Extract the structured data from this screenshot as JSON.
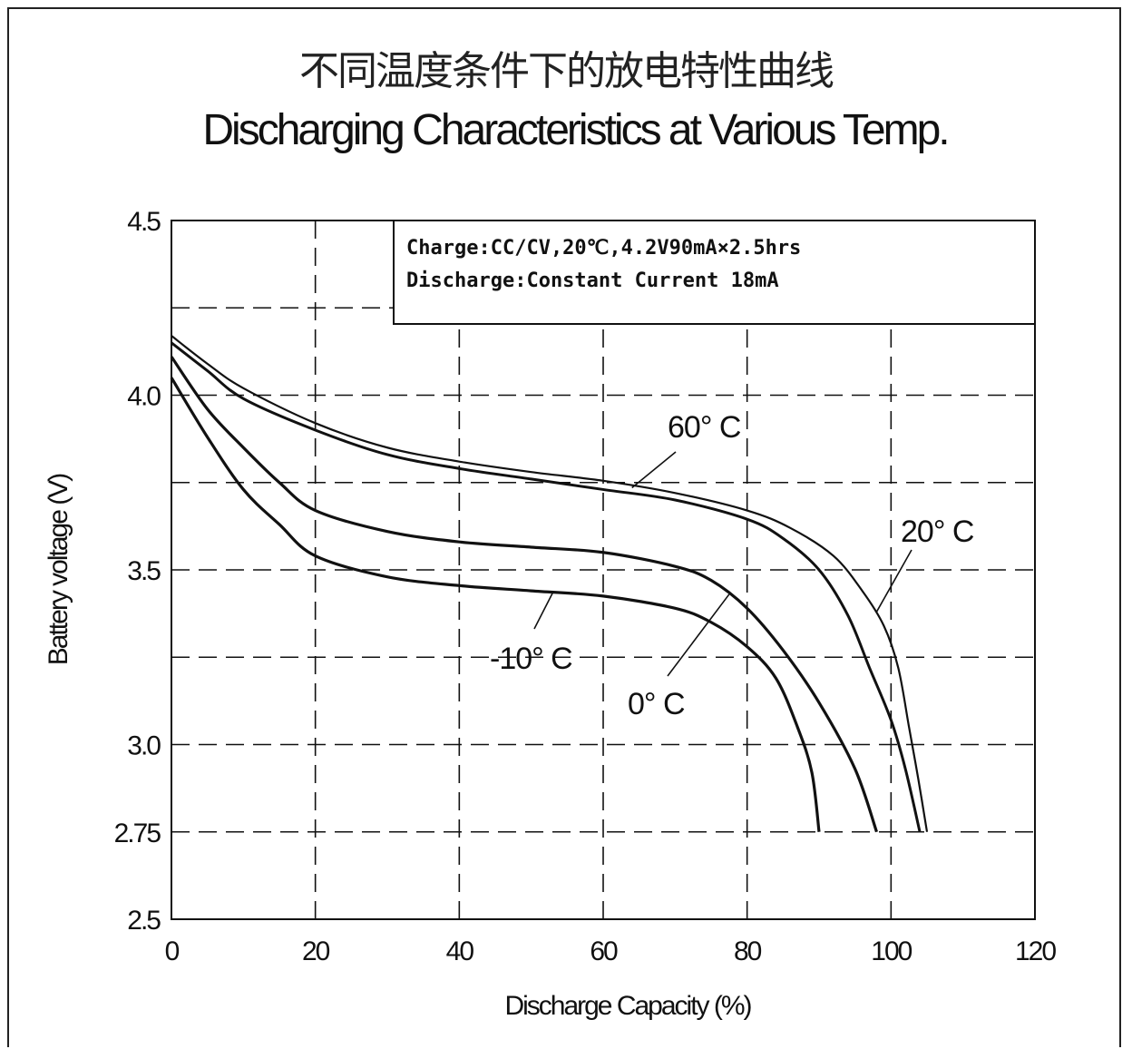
{
  "chart_data": {
    "type": "line",
    "title": "不同温度条件下的放电特性曲线",
    "subtitle": "Discharging Characteristics at Various Temp.",
    "xlabel": "Discharge Capacity (%)",
    "ylabel": "Battery voltage (V)",
    "xlim": [
      0,
      120
    ],
    "ylim": [
      2.5,
      4.5
    ],
    "x_ticks": [
      "0",
      "20",
      "40",
      "60",
      "80",
      "100",
      "120"
    ],
    "y_ticks": [
      {
        "value": 4.5,
        "label": "4.5"
      },
      {
        "value": 4.0,
        "label": "4.0"
      },
      {
        "value": 3.5,
        "label": "3.5"
      },
      {
        "value": 3.0,
        "label": "3.0"
      },
      {
        "value": 2.75,
        "label": "2.75"
      },
      {
        "value": 2.5,
        "label": "2.5"
      }
    ],
    "grid": true,
    "notes": [
      "Charge:CC/CV,20℃,4.2V90mA×2.5hrs",
      "Discharge:Constant Current 18mA"
    ],
    "series": [
      {
        "name": "60° C",
        "points": [
          [
            0,
            4.17
          ],
          [
            5,
            4.09
          ],
          [
            10,
            4.02
          ],
          [
            20,
            3.92
          ],
          [
            30,
            3.85
          ],
          [
            40,
            3.81
          ],
          [
            50,
            3.78
          ],
          [
            60,
            3.755
          ],
          [
            70,
            3.72
          ],
          [
            80,
            3.67
          ],
          [
            86,
            3.62
          ],
          [
            92,
            3.54
          ],
          [
            96,
            3.44
          ],
          [
            99,
            3.34
          ],
          [
            101,
            3.22
          ],
          [
            102.5,
            3.05
          ],
          [
            103.8,
            2.9
          ],
          [
            105,
            2.75
          ]
        ]
      },
      {
        "name": "20° C",
        "points": [
          [
            0,
            4.15
          ],
          [
            5,
            4.07
          ],
          [
            10,
            3.99
          ],
          [
            20,
            3.9
          ],
          [
            30,
            3.83
          ],
          [
            40,
            3.79
          ],
          [
            50,
            3.76
          ],
          [
            60,
            3.73
          ],
          [
            70,
            3.7
          ],
          [
            80,
            3.645
          ],
          [
            85,
            3.59
          ],
          [
            90,
            3.5
          ],
          [
            94,
            3.37
          ],
          [
            97,
            3.22
          ],
          [
            100,
            3.07
          ],
          [
            102,
            2.93
          ],
          [
            104,
            2.75
          ]
        ]
      },
      {
        "name": "0° C",
        "points": [
          [
            0,
            4.11
          ],
          [
            5,
            3.96
          ],
          [
            10,
            3.85
          ],
          [
            15,
            3.75
          ],
          [
            20,
            3.67
          ],
          [
            30,
            3.61
          ],
          [
            40,
            3.58
          ],
          [
            50,
            3.565
          ],
          [
            60,
            3.55
          ],
          [
            70,
            3.51
          ],
          [
            75,
            3.47
          ],
          [
            80,
            3.39
          ],
          [
            85,
            3.27
          ],
          [
            90,
            3.12
          ],
          [
            95,
            2.93
          ],
          [
            98,
            2.75
          ]
        ]
      },
      {
        "name": "-10° C",
        "points": [
          [
            0,
            4.05
          ],
          [
            5,
            3.88
          ],
          [
            10,
            3.73
          ],
          [
            15,
            3.63
          ],
          [
            20,
            3.54
          ],
          [
            30,
            3.48
          ],
          [
            40,
            3.455
          ],
          [
            50,
            3.44
          ],
          [
            60,
            3.425
          ],
          [
            70,
            3.39
          ],
          [
            75,
            3.35
          ],
          [
            80,
            3.28
          ],
          [
            84,
            3.19
          ],
          [
            87,
            3.05
          ],
          [
            89,
            2.92
          ],
          [
            90,
            2.75
          ]
        ]
      }
    ],
    "curve_labels": [
      {
        "text": "60°  C",
        "series": "60° C"
      },
      {
        "text": "20°  C",
        "series": "20° C"
      },
      {
        "text": "0°  C",
        "series": "0° C"
      },
      {
        "text": "-10°  C",
        "series": "-10° C"
      }
    ]
  }
}
